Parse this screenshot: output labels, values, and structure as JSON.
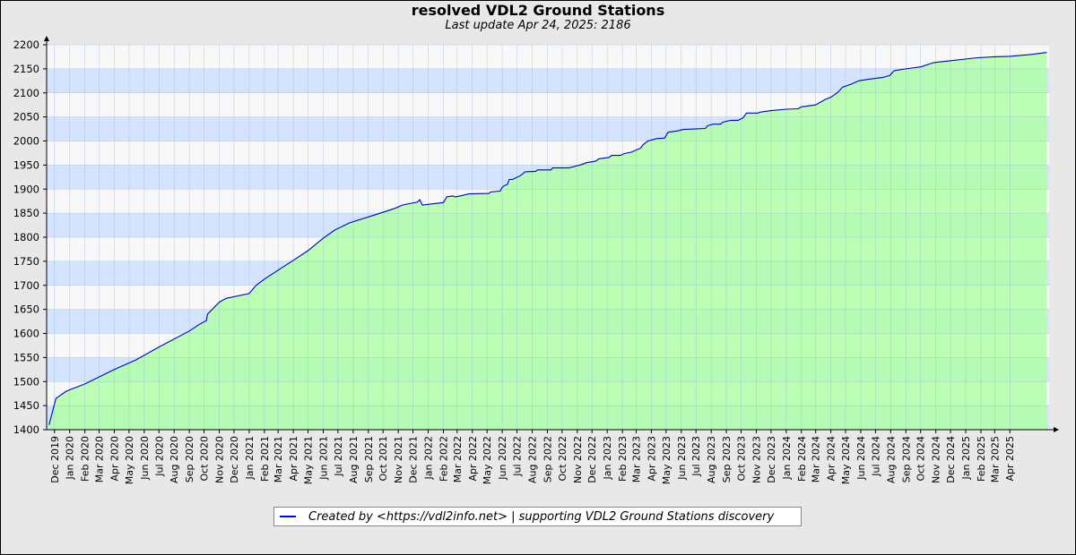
{
  "chart_data": {
    "type": "area",
    "title": "resolved VDL2 Ground Stations",
    "subtitle": "Last update Apr 24, 2025: 2186",
    "xlabel": "",
    "ylabel": "",
    "ylim": [
      1400,
      2200
    ],
    "yticks": [
      1400,
      1450,
      1500,
      1550,
      1600,
      1650,
      1700,
      1750,
      1800,
      1850,
      1900,
      1950,
      2000,
      2050,
      2100,
      2150,
      2200
    ],
    "xticks": [
      "Dec 2019",
      "Jan 2020",
      "Feb 2020",
      "Mar 2020",
      "Apr 2020",
      "May 2020",
      "Jun 2020",
      "Jul 2020",
      "Aug 2020",
      "Sep 2020",
      "Oct 2020",
      "Nov 2020",
      "Dec 2020",
      "Jan 2021",
      "Feb 2021",
      "Mar 2021",
      "Apr 2021",
      "May 2021",
      "Jun 2021",
      "Jul 2021",
      "Aug 2021",
      "Sep 2021",
      "Oct 2021",
      "Nov 2021",
      "Dec 2021",
      "Jan 2022",
      "Feb 2022",
      "Mar 2022",
      "Apr 2022",
      "May 2022",
      "Jun 2022",
      "Jul 2022",
      "Aug 2022",
      "Sep 2022",
      "Oct 2022",
      "Nov 2022",
      "Dec 2022",
      "Jan 2023",
      "Feb 2023",
      "Mar 2023",
      "Apr 2023",
      "May 2023",
      "Jun 2023",
      "Jul 2023",
      "Aug 2023",
      "Sep 2023",
      "Oct 2023",
      "Nov 2023",
      "Dec 2023",
      "Jan 2024",
      "Feb 2024",
      "Mar 2024",
      "Apr 2024",
      "May 2024",
      "Jun 2024",
      "Jul 2024",
      "Aug 2024",
      "Sep 2024",
      "Oct 2024",
      "Nov 2024",
      "Dec 2024",
      "Jan 2025",
      "Feb 2025",
      "Mar 2025",
      "Apr 2025"
    ],
    "grid": true,
    "legend_position": "bottom-center",
    "colors": {
      "line": "#0000cc",
      "fill": "#b0ffa8",
      "band_blue": "#d4e4ff",
      "band_white": "#f8f8f8"
    },
    "series": [
      {
        "name": "Created by <https://vdl2info.net>  |  supporting VDL2 Ground Stations discovery",
        "points": [
          [
            "2019-11-20",
            1410
          ],
          [
            "2019-12-04",
            1465
          ],
          [
            "2019-12-25",
            1480
          ],
          [
            "2020-02-01",
            1495
          ],
          [
            "2020-04-01",
            1525
          ],
          [
            "2020-05-15",
            1545
          ],
          [
            "2020-07-01",
            1572
          ],
          [
            "2020-09-01",
            1605
          ],
          [
            "2020-09-20",
            1618
          ],
          [
            "2020-10-06",
            1627
          ],
          [
            "2020-10-08",
            1640
          ],
          [
            "2020-11-01",
            1665
          ],
          [
            "2020-11-15",
            1673
          ],
          [
            "2021-01-01",
            1683
          ],
          [
            "2021-01-15",
            1700
          ],
          [
            "2021-02-01",
            1713
          ],
          [
            "2021-04-01",
            1752
          ],
          [
            "2021-05-01",
            1772
          ],
          [
            "2021-06-01",
            1798
          ],
          [
            "2021-06-25",
            1815
          ],
          [
            "2021-07-25",
            1830
          ],
          [
            "2021-09-10",
            1845
          ],
          [
            "2021-10-25",
            1860
          ],
          [
            "2021-11-10",
            1867
          ],
          [
            "2021-12-10",
            1873
          ],
          [
            "2021-12-15",
            1878
          ],
          [
            "2021-12-20",
            1867
          ],
          [
            "2022-02-01",
            1872
          ],
          [
            "2022-02-08",
            1884
          ],
          [
            "2022-02-20",
            1886
          ],
          [
            "2022-02-25",
            1884
          ],
          [
            "2022-03-08",
            1886
          ],
          [
            "2022-03-25",
            1890
          ],
          [
            "2022-05-05",
            1891
          ],
          [
            "2022-05-08",
            1894
          ],
          [
            "2022-05-28",
            1896
          ],
          [
            "2022-06-01",
            1904
          ],
          [
            "2022-06-05",
            1907
          ],
          [
            "2022-06-12",
            1910
          ],
          [
            "2022-06-15",
            1920
          ],
          [
            "2022-06-22",
            1920
          ],
          [
            "2022-07-08",
            1928
          ],
          [
            "2022-07-18",
            1936
          ],
          [
            "2022-08-08",
            1937
          ],
          [
            "2022-08-12",
            1940
          ],
          [
            "2022-09-08",
            1940
          ],
          [
            "2022-09-12",
            1944
          ],
          [
            "2022-10-15",
            1944
          ],
          [
            "2022-11-10",
            1951
          ],
          [
            "2022-11-20",
            1955
          ],
          [
            "2022-12-08",
            1958
          ],
          [
            "2022-12-15",
            1963
          ],
          [
            "2023-01-05",
            1966
          ],
          [
            "2023-01-10",
            1970
          ],
          [
            "2023-01-28",
            1970
          ],
          [
            "2023-02-05",
            1974
          ],
          [
            "2023-02-20",
            1977
          ],
          [
            "2023-03-05",
            1983
          ],
          [
            "2023-03-10",
            1985
          ],
          [
            "2023-03-15",
            1992
          ],
          [
            "2023-03-25",
            2000
          ],
          [
            "2023-04-12",
            2005
          ],
          [
            "2023-04-28",
            2006
          ],
          [
            "2023-05-05",
            2018
          ],
          [
            "2023-05-25",
            2021
          ],
          [
            "2023-06-05",
            2024
          ],
          [
            "2023-06-28",
            2025
          ],
          [
            "2023-07-20",
            2026
          ],
          [
            "2023-07-25",
            2032
          ],
          [
            "2023-08-05",
            2035
          ],
          [
            "2023-08-20",
            2035
          ],
          [
            "2023-08-25",
            2039
          ],
          [
            "2023-09-10",
            2043
          ],
          [
            "2023-09-25",
            2043
          ],
          [
            "2023-10-05",
            2048
          ],
          [
            "2023-10-12",
            2058
          ],
          [
            "2023-11-05",
            2058
          ],
          [
            "2023-11-08",
            2060
          ],
          [
            "2023-12-01",
            2063
          ],
          [
            "2024-01-01",
            2066
          ],
          [
            "2024-01-25",
            2067
          ],
          [
            "2024-02-01",
            2071
          ],
          [
            "2024-03-01",
            2075
          ],
          [
            "2024-03-20",
            2086
          ],
          [
            "2024-04-01",
            2091
          ],
          [
            "2024-04-15",
            2101
          ],
          [
            "2024-04-25",
            2112
          ],
          [
            "2024-05-12",
            2118
          ],
          [
            "2024-05-28",
            2125
          ],
          [
            "2024-06-15",
            2128
          ],
          [
            "2024-07-15",
            2132
          ],
          [
            "2024-07-30",
            2136
          ],
          [
            "2024-08-08",
            2146
          ],
          [
            "2024-08-25",
            2149
          ],
          [
            "2024-10-01",
            2154
          ],
          [
            "2024-10-28",
            2163
          ],
          [
            "2024-11-15",
            2165
          ],
          [
            "2025-01-25",
            2173
          ],
          [
            "2025-03-01",
            2175
          ],
          [
            "2025-04-01",
            2176
          ],
          [
            "2025-05-15",
            2180
          ],
          [
            "2025-06-15",
            2184
          ]
        ]
      }
    ]
  }
}
